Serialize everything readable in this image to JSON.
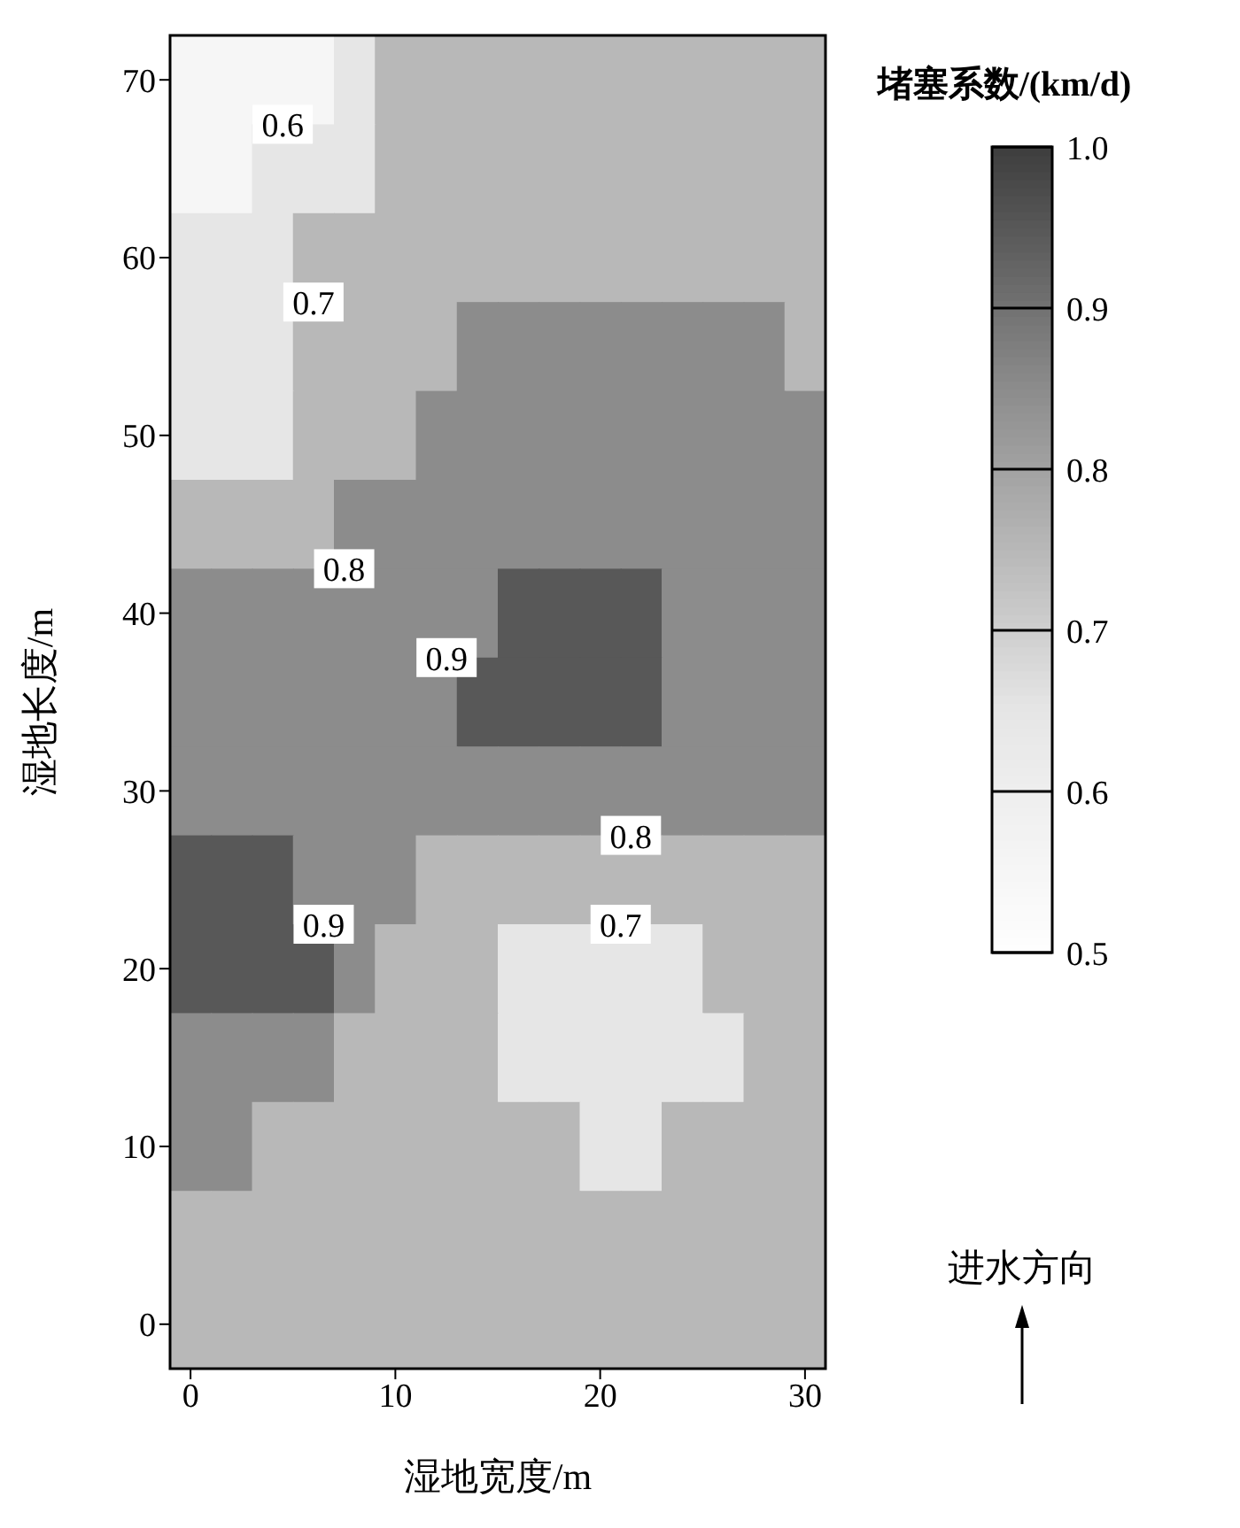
{
  "chart_data": {
    "type": "heatmap",
    "xlabel": "湿地宽度/m",
    "ylabel": "湿地长度/m",
    "clabel": "堵塞系数/(km/d)",
    "categories": [
      "0",
      null,
      null,
      null,
      null,
      "10",
      null,
      null,
      null,
      null,
      "20",
      null,
      null,
      null,
      null,
      "30"
    ],
    "y_categories": [
      "70",
      null,
      "60",
      null,
      "50",
      null,
      "40",
      null,
      "30",
      null,
      "20",
      null,
      "10",
      null,
      "0"
    ],
    "clim": [
      0.5,
      1.0
    ],
    "cticks": [
      0.5,
      0.6,
      0.7,
      0.8,
      0.9,
      {
        "value": 1.0,
        "label": "1.0"
      }
    ],
    "colors": [
      "#f6f6f6",
      "#e6e6e6",
      "#b8b8b8",
      "#8c8c8c",
      "#585858"
    ],
    "cells": [
      [
        0.55,
        0.55,
        0.55,
        0.55,
        0.65,
        0.75,
        0.75,
        0.75,
        0.75,
        0.75,
        0.75,
        0.75,
        0.75,
        0.75,
        0.75,
        0.75
      ],
      [
        0.55,
        0.55,
        0.65,
        0.65,
        0.65,
        0.75,
        0.75,
        0.75,
        0.75,
        0.75,
        0.75,
        0.75,
        0.75,
        0.75,
        0.75,
        0.75
      ],
      [
        0.65,
        0.65,
        0.65,
        0.75,
        0.75,
        0.75,
        0.75,
        0.75,
        0.75,
        0.75,
        0.75,
        0.75,
        0.75,
        0.75,
        0.75,
        0.75
      ],
      [
        0.65,
        0.65,
        0.65,
        0.75,
        0.75,
        0.75,
        0.75,
        0.85,
        0.85,
        0.85,
        0.85,
        0.85,
        0.85,
        0.85,
        0.85,
        0.75
      ],
      [
        0.65,
        0.65,
        0.65,
        0.75,
        0.75,
        0.75,
        0.85,
        0.85,
        0.85,
        0.85,
        0.85,
        0.85,
        0.85,
        0.85,
        0.85,
        0.85
      ],
      [
        0.75,
        0.75,
        0.75,
        0.75,
        0.85,
        0.85,
        0.85,
        0.85,
        0.85,
        0.85,
        0.85,
        0.85,
        0.85,
        0.85,
        0.85,
        0.85
      ],
      [
        0.85,
        0.85,
        0.85,
        0.85,
        0.85,
        0.85,
        0.85,
        0.85,
        0.95,
        0.95,
        0.95,
        0.95,
        0.85,
        0.85,
        0.85,
        0.85
      ],
      [
        0.85,
        0.85,
        0.85,
        0.85,
        0.85,
        0.85,
        0.85,
        0.95,
        0.95,
        0.95,
        0.95,
        0.95,
        0.85,
        0.85,
        0.85,
        0.85
      ],
      [
        0.85,
        0.85,
        0.85,
        0.85,
        0.85,
        0.85,
        0.85,
        0.85,
        0.85,
        0.85,
        0.85,
        0.85,
        0.85,
        0.85,
        0.85,
        0.85
      ],
      [
        0.95,
        0.95,
        0.95,
        0.85,
        0.85,
        0.85,
        0.75,
        0.75,
        0.75,
        0.75,
        0.75,
        0.75,
        0.75,
        0.75,
        0.75,
        0.75
      ],
      [
        0.95,
        0.95,
        0.95,
        0.95,
        0.85,
        0.75,
        0.75,
        0.75,
        0.65,
        0.65,
        0.65,
        0.65,
        0.65,
        0.75,
        0.75,
        0.75
      ],
      [
        0.85,
        0.85,
        0.85,
        0.85,
        0.75,
        0.75,
        0.75,
        0.75,
        0.65,
        0.65,
        0.65,
        0.65,
        0.65,
        0.65,
        0.75,
        0.75
      ],
      [
        0.85,
        0.85,
        0.75,
        0.75,
        0.75,
        0.75,
        0.75,
        0.75,
        0.75,
        0.75,
        0.65,
        0.65,
        0.75,
        0.75,
        0.75,
        0.75
      ],
      [
        0.75,
        0.75,
        0.75,
        0.75,
        0.75,
        0.75,
        0.75,
        0.75,
        0.75,
        0.75,
        0.75,
        0.75,
        0.75,
        0.75,
        0.75,
        0.75
      ],
      [
        0.75,
        0.75,
        0.75,
        0.75,
        0.75,
        0.75,
        0.75,
        0.75,
        0.75,
        0.75,
        0.75,
        0.75,
        0.75,
        0.75,
        0.75,
        0.75
      ]
    ],
    "annotations": [
      "0.6",
      "0.7",
      "0.8",
      "0.9",
      "0.9",
      "0.8",
      "0.7",
      "进水方向"
    ]
  }
}
